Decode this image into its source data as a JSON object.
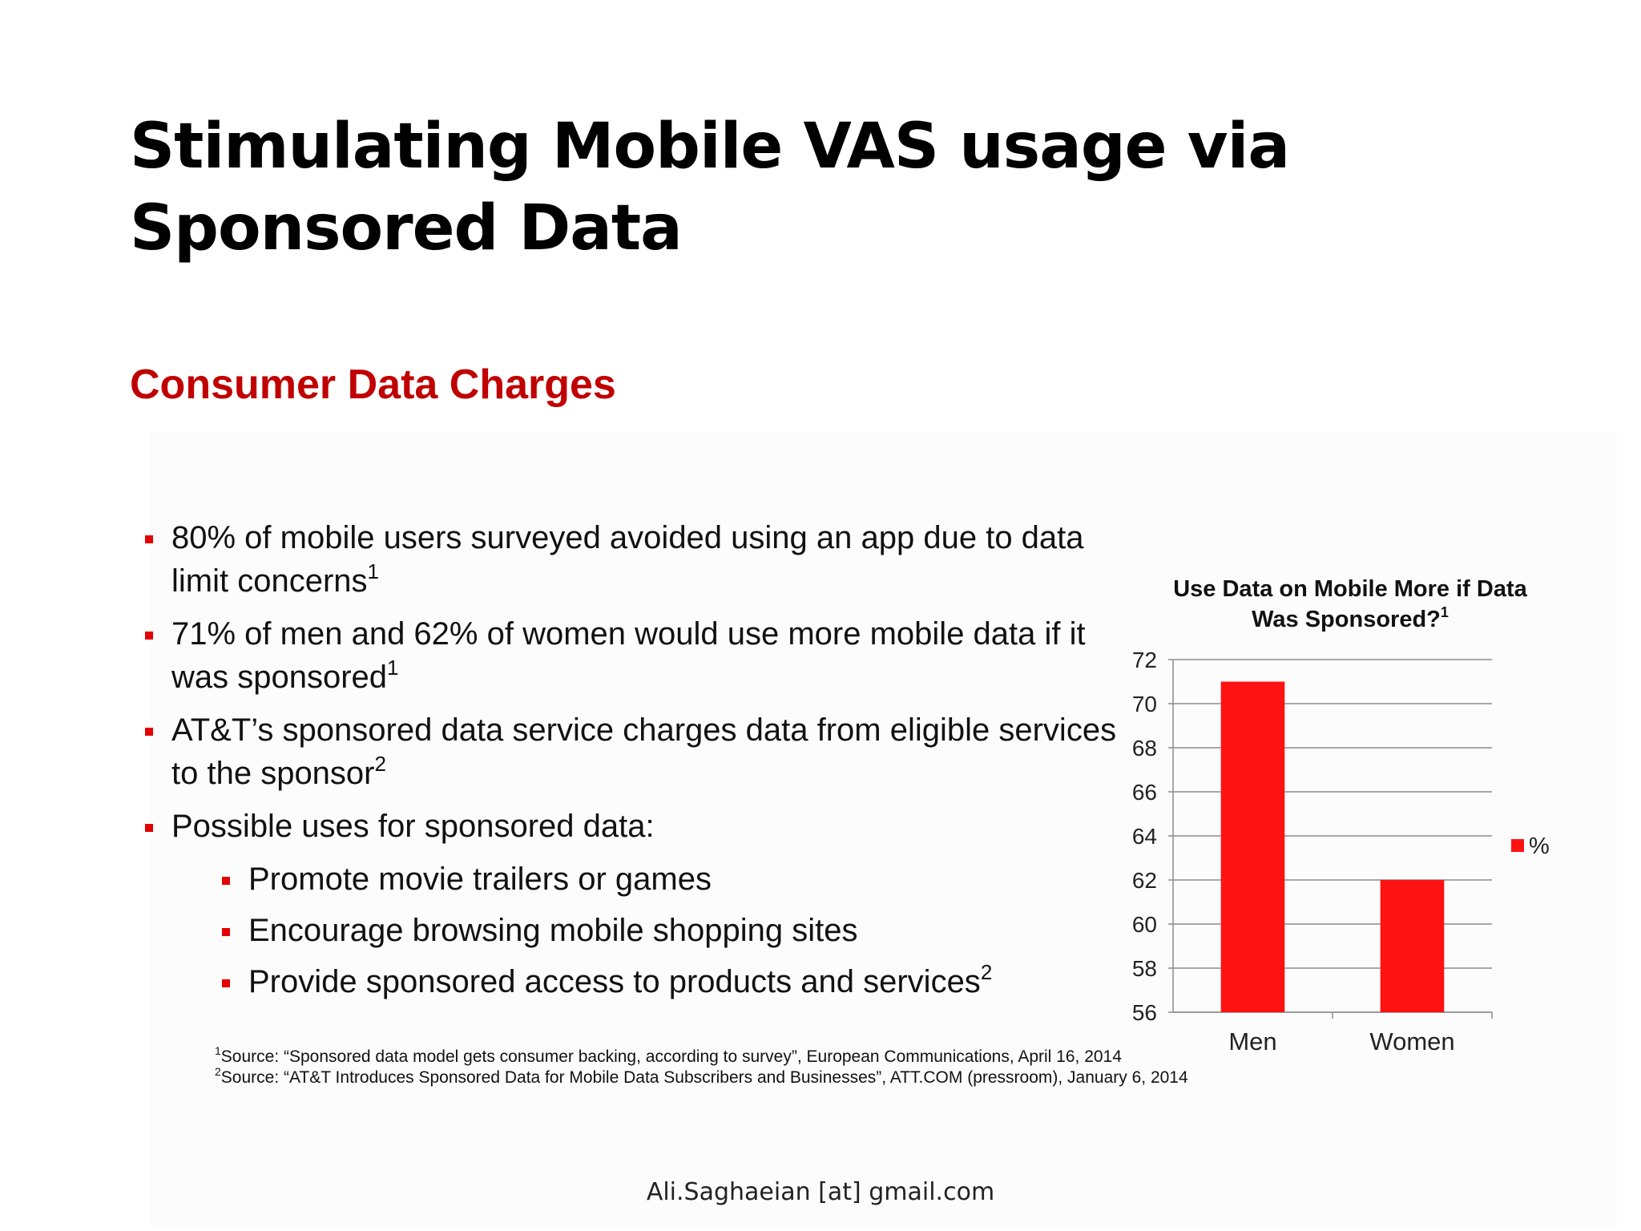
{
  "slide": {
    "title": "Stimulating Mobile VAS usage via Sponsored Data",
    "heading": "Consumer Data Charges",
    "accent_color": "#c00000",
    "footer": "Ali.Saghaeian [at] gmail.com"
  },
  "bullets": [
    {
      "text": "80% of mobile users surveyed avoided using an app due to data limit concerns",
      "sup": "1"
    },
    {
      "text": "71% of men and 62% of women would use more mobile data if it was sponsored",
      "sup": "1"
    },
    {
      "text": "AT&T’s sponsored data service charges data from eligible services to the sponsor",
      "sup": "2"
    },
    {
      "text": "Possible uses for sponsored data:",
      "sup": ""
    }
  ],
  "sub_bullets": [
    {
      "text": "Promote movie trailers or games",
      "sup": ""
    },
    {
      "text": "Encourage browsing mobile shopping sites",
      "sup": ""
    },
    {
      "text": "Provide sponsored access to products and services",
      "sup": "2"
    }
  ],
  "footnotes": [
    {
      "sup": "1",
      "text": "Source: “Sponsored data model gets consumer backing, according to survey”, European Communications, April 16, 2014"
    },
    {
      "sup": "2",
      "text": "Source: “AT&T Introduces Sponsored Data for Mobile Data Subscribers and Businesses”, ATT.COM (pressroom), January 6, 2014"
    }
  ],
  "chart_data": {
    "type": "bar",
    "title": "Use Data on Mobile More if Data Was Sponsored?",
    "title_sup": "1",
    "categories": [
      "Men",
      "Women"
    ],
    "series": [
      {
        "name": "%",
        "values": [
          71,
          62
        ],
        "color": "#ff1212"
      }
    ],
    "ylim": [
      56,
      72
    ],
    "yticks": [
      56,
      58,
      60,
      62,
      64,
      66,
      68,
      70,
      72
    ],
    "grid": true,
    "legend": "right"
  }
}
